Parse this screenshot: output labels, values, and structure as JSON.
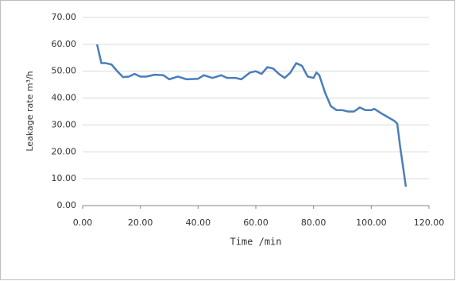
{
  "chart_data": {
    "type": "line",
    "xlabel": "Time /min",
    "ylabel": "Leakage rate m³/h",
    "x": [
      5,
      6.5,
      8,
      10,
      12,
      14,
      16,
      18,
      20,
      22,
      25,
      28,
      30,
      33,
      36,
      40,
      42,
      45,
      48,
      50,
      53,
      55,
      58,
      60,
      62,
      64,
      66,
      68,
      70,
      72,
      74,
      76,
      78,
      80,
      81,
      82,
      84,
      86,
      88,
      90,
      92,
      94,
      96,
      98,
      100,
      101,
      104,
      108,
      109,
      110,
      112
    ],
    "series": [
      {
        "name": "Leakage rate",
        "color": "#4a7ebb",
        "values": [
          60,
          53,
          53,
          52.5,
          50,
          47.8,
          48,
          49,
          48,
          48,
          48.7,
          48.5,
          47,
          48,
          47,
          47.2,
          48.5,
          47.5,
          48.5,
          47.5,
          47.5,
          47,
          49.5,
          50,
          49,
          51.5,
          51,
          49,
          47.5,
          49.5,
          53,
          52,
          48,
          47.5,
          49.5,
          48.5,
          42,
          37,
          35.5,
          35.5,
          35,
          35,
          36.5,
          35.5,
          35.5,
          36,
          34,
          31.5,
          30.5,
          22,
          7
        ]
      }
    ],
    "xlim": [
      0,
      120
    ],
    "xticks": [
      {
        "value": 0,
        "label": "0.00"
      },
      {
        "value": 20,
        "label": "20.00"
      },
      {
        "value": 40,
        "label": "40.00"
      },
      {
        "value": 60,
        "label": "60.00"
      },
      {
        "value": 80,
        "label": "80.00"
      },
      {
        "value": 100,
        "label": "100.00"
      },
      {
        "value": 120,
        "label": "120.00"
      }
    ],
    "ylim": [
      0,
      70
    ],
    "yticks": [
      {
        "value": 0,
        "label": "0.00"
      },
      {
        "value": 10,
        "label": "10.00"
      },
      {
        "value": 20,
        "label": "20.00"
      },
      {
        "value": 30,
        "label": "30.00"
      },
      {
        "value": 40,
        "label": "40.00"
      },
      {
        "value": 50,
        "label": "50.00"
      },
      {
        "value": 60,
        "label": "60.00"
      },
      {
        "value": 70,
        "label": "70.00"
      }
    ],
    "grid": true
  }
}
